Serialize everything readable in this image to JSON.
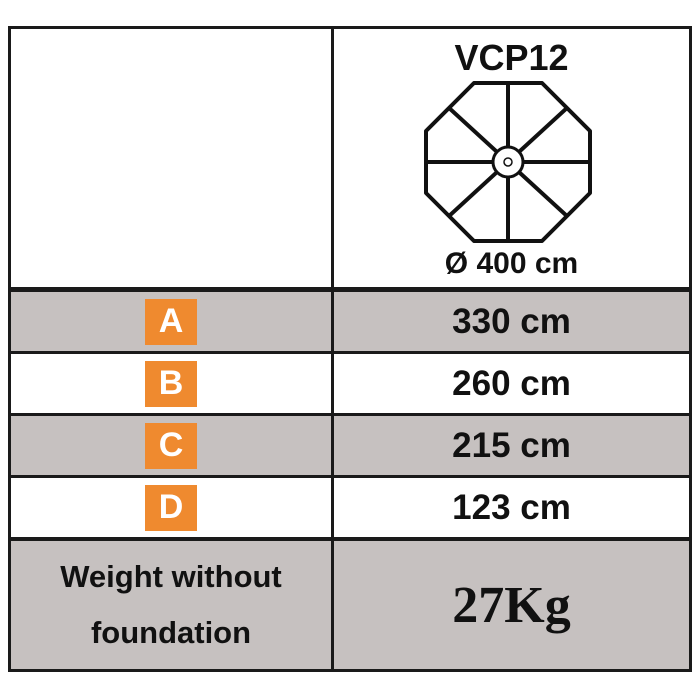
{
  "header": {
    "model": "VCP12",
    "diameter": "Ø 400 cm",
    "icon": "octagonal-umbrella-icon"
  },
  "rows": [
    {
      "label": "A",
      "value": "330 cm"
    },
    {
      "label": "B",
      "value": "260 cm"
    },
    {
      "label": "C",
      "value": "215 cm"
    },
    {
      "label": "D",
      "value": "123 cm"
    }
  ],
  "weight": {
    "label_line1": "Weight without",
    "label_line2": "foundation",
    "value": "27Kg"
  },
  "colors": {
    "badge": "#ef8a2f",
    "shaded_row": "#c6c1c0",
    "border": "#1a1a1a"
  }
}
